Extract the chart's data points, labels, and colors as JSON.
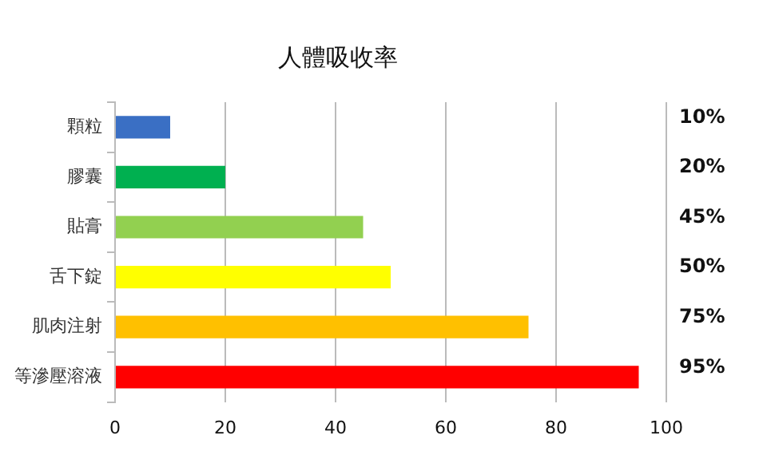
{
  "chart_data": {
    "type": "bar",
    "orientation": "horizontal",
    "title": "人體吸收率",
    "categories": [
      "顆粒",
      "膠囊",
      "貼膏",
      "舌下錠",
      "肌肉注射",
      "等滲壓溶液"
    ],
    "values": [
      10,
      20,
      45,
      50,
      75,
      95
    ],
    "colors": [
      "#3a6fc4",
      "#00b050",
      "#92d050",
      "#ffff00",
      "#ffc000",
      "#ff0000"
    ],
    "value_labels": [
      "10%",
      "20%",
      "45%",
      "50%",
      "75%",
      "95%"
    ],
    "xlim": [
      0,
      100
    ],
    "xticks": [
      0,
      20,
      40,
      60,
      80,
      100
    ],
    "grid": "x",
    "legend": false
  }
}
